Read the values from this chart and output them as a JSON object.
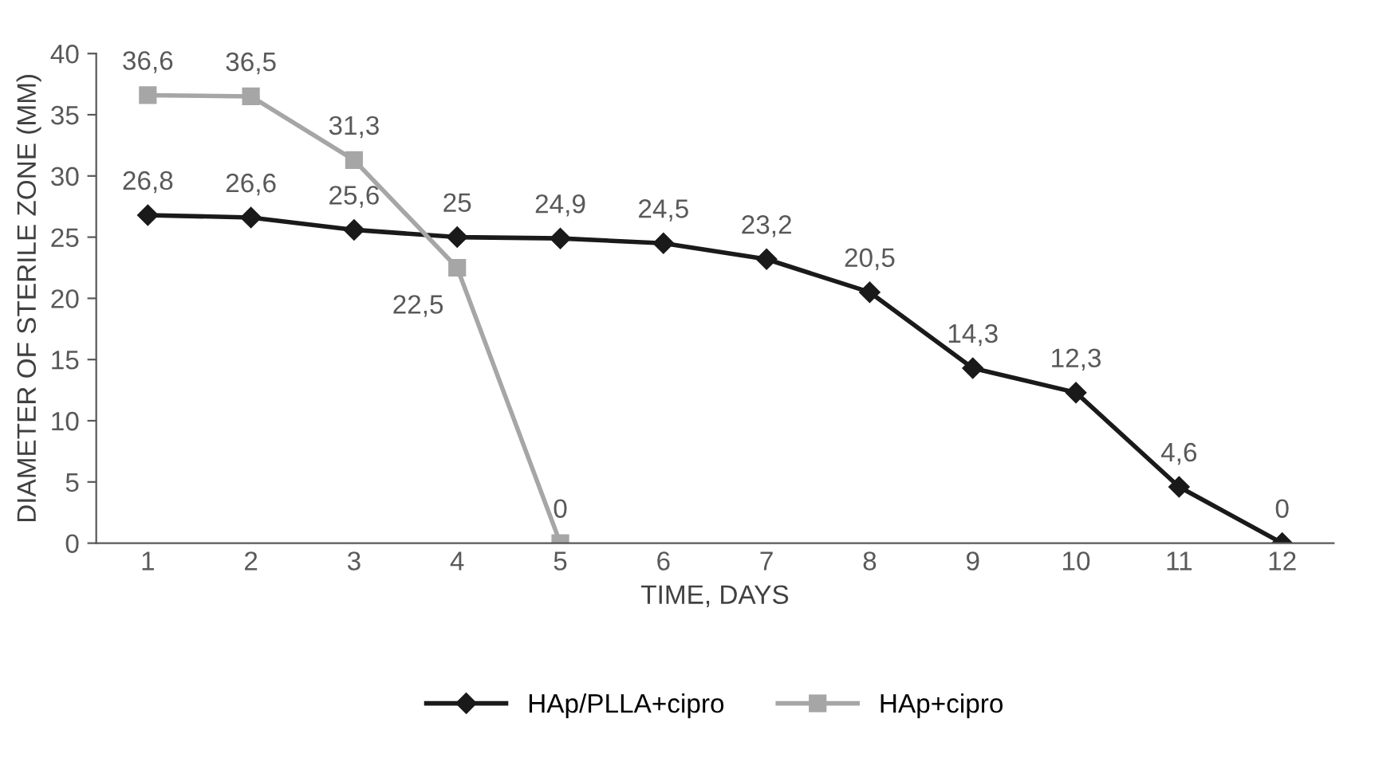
{
  "chart_data": {
    "type": "line",
    "xlabel": "TIME, DAYS",
    "ylabel": "DIAMETER OF STERILE ZONE (MM)",
    "categories": [
      "1",
      "2",
      "3",
      "4",
      "5",
      "6",
      "7",
      "8",
      "9",
      "10",
      "11",
      "12"
    ],
    "series": [
      {
        "name": "HAp/PLLA+cipro",
        "color": "#1a1a1a",
        "marker": "diamond",
        "values": [
          26.8,
          26.6,
          25.6,
          25,
          24.9,
          24.5,
          23.2,
          20.5,
          14.3,
          12.3,
          4.6,
          0
        ],
        "value_labels": [
          "26,8",
          "26,6",
          "25,6",
          "25",
          "24,9",
          "24,5",
          "23,2",
          "20,5",
          "14,3",
          "12,3",
          "4,6",
          "0"
        ]
      },
      {
        "name": "HAp+cipro",
        "color": "#a6a6a6",
        "marker": "square",
        "values": [
          36.6,
          36.5,
          31.3,
          22.5,
          0,
          null,
          null,
          null,
          null,
          null,
          null,
          null
        ],
        "value_labels": [
          "36,6",
          "36,5",
          "31,3",
          "22,5",
          "0",
          null,
          null,
          null,
          null,
          null,
          null,
          null
        ]
      }
    ],
    "ylim": [
      0,
      40
    ],
    "yticks": [
      0,
      5,
      10,
      15,
      20,
      25,
      30,
      35,
      40
    ],
    "grid": false,
    "legend": "bottom",
    "line_style": "solid"
  }
}
